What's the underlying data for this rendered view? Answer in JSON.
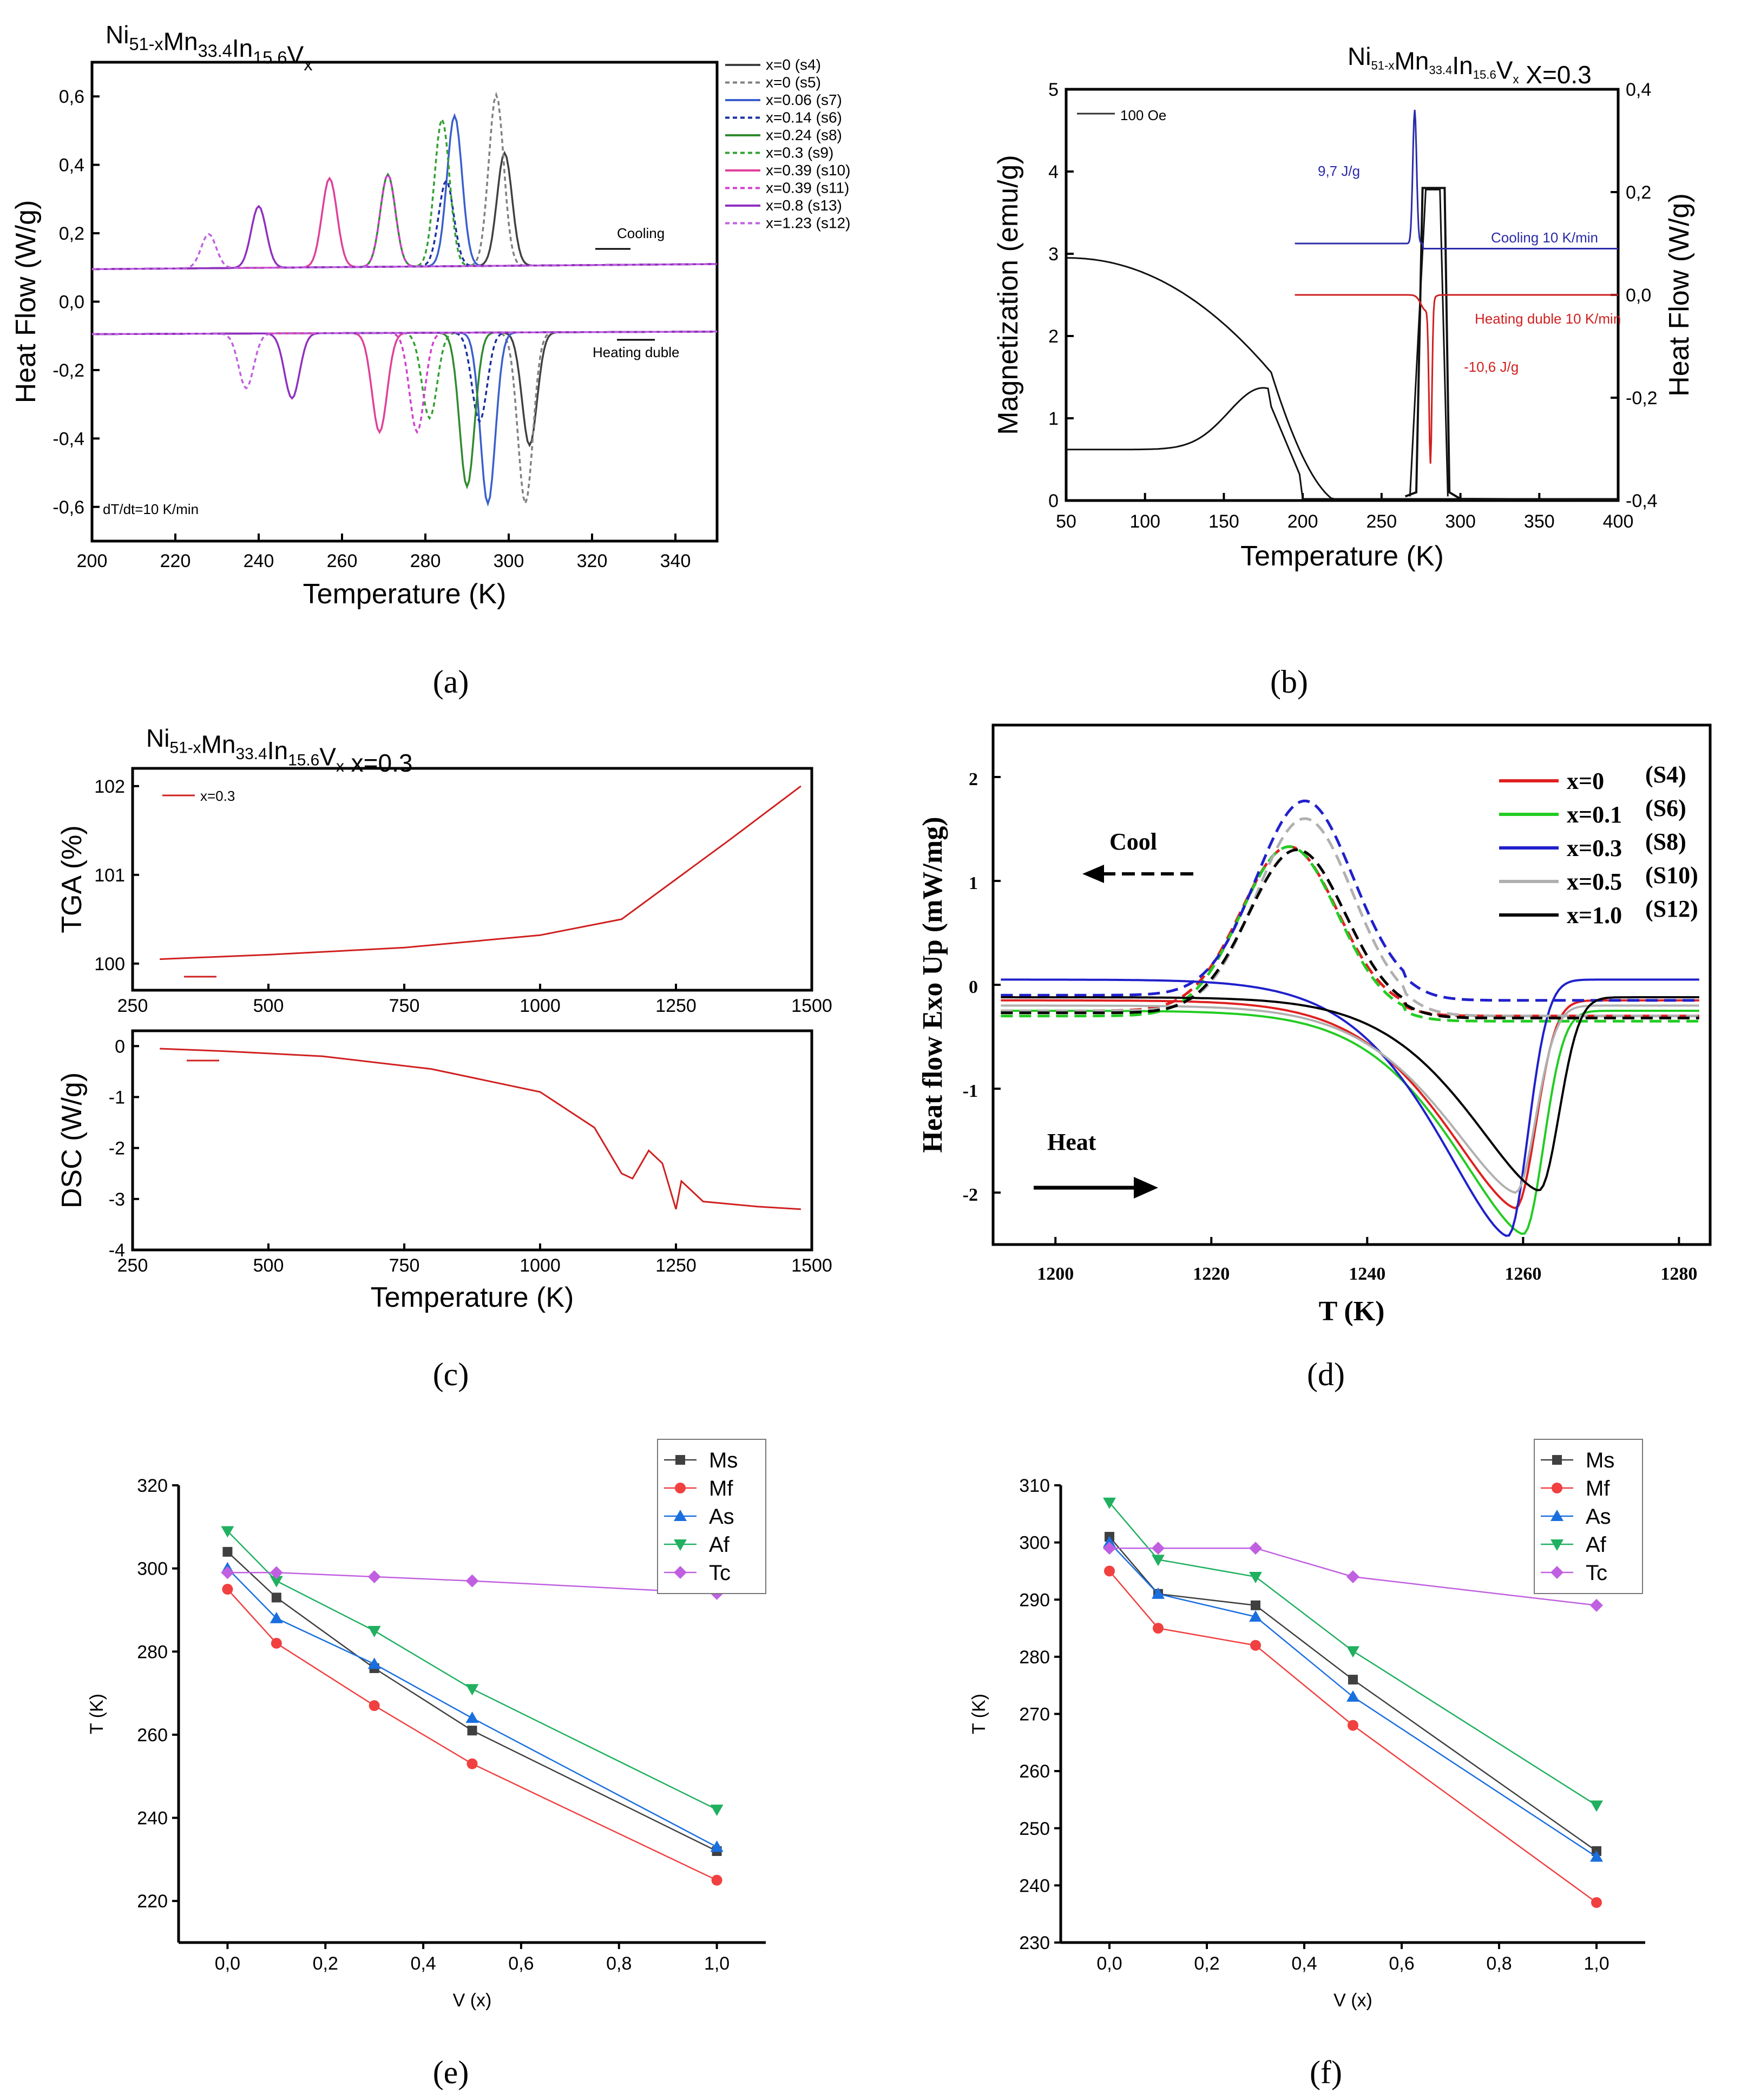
{
  "figure": {
    "panel_labels": [
      "(a)",
      "(b)",
      "(c)",
      "(d)",
      "(e)",
      "(f)"
    ]
  },
  "chart_data": [
    {
      "id": "a",
      "type": "line",
      "title": "Ni51-xMn33.4In15.6Vx",
      "xlabel": "Temperature (K)",
      "ylabel": "Heat Flow (W/g)",
      "xlim": [
        200,
        350
      ],
      "ylim": [
        -0.7,
        0.7
      ],
      "xticks": [
        "200",
        "220",
        "240",
        "260",
        "280",
        "300",
        "320",
        "340"
      ],
      "yticks": [
        "-0,6",
        "-0,4",
        "-0,2",
        "0,0",
        "0,2",
        "0,4",
        "0,6"
      ],
      "annotations": [
        "Cooling",
        "Heating duble",
        "dT/dt=10 K/min"
      ],
      "legend": [
        "x=0       (s4)",
        "x=0       (s5)",
        "x=0.06  (s7)",
        "x=0.14  (s6)",
        "x=0.24  (s8)",
        "x=0.3    (s9)",
        "x=0.39   (s10)",
        "x=0.39  (s11)",
        "x=0.8    (s13)",
        "x=1.23  (s12)"
      ],
      "series": [
        {
          "name": "x=0 (s4)",
          "color": "#404040",
          "cool_peak_T": 299,
          "cool_peak": 0.43,
          "heat_peak_T": 305,
          "heat_peak": -0.43
        },
        {
          "name": "x=0 (s5)",
          "color": "#808080",
          "cool_peak_T": 297,
          "cool_peak": 0.6,
          "heat_peak_T": 304,
          "heat_peak": -0.6
        },
        {
          "name": "x=0.06 (s7)",
          "color": "#3a5fcd",
          "cool_peak_T": 287,
          "cool_peak": 0.54,
          "heat_peak_T": 295,
          "heat_peak": -0.6
        },
        {
          "name": "x=0.14 (s6)",
          "color": "#1a2fa0",
          "cool_peak_T": 285,
          "cool_peak": 0.35,
          "heat_peak_T": 293,
          "heat_peak": -0.36
        },
        {
          "name": "x=0.24 (s8)",
          "color": "#2e8b2e",
          "cool_peak_T": 271,
          "cool_peak": 0.37,
          "heat_peak_T": 290,
          "heat_peak": -0.55
        },
        {
          "name": "x=0.3 (s9)",
          "color": "#33a033",
          "cool_peak_T": 284,
          "cool_peak": 0.53,
          "heat_peak_T": 281,
          "heat_peak": -0.35
        },
        {
          "name": "x=0.39 (s10)",
          "color": "#e0409a",
          "cool_peak_T": 257,
          "cool_peak": 0.36,
          "heat_peak_T": 269,
          "heat_peak": -0.39
        },
        {
          "name": "x=0.39 (s11)",
          "color": "#d040d0",
          "cool_peak_T": 271,
          "cool_peak": 0.37,
          "heat_peak_T": 278,
          "heat_peak": -0.39
        },
        {
          "name": "x=0.8 (s13)",
          "color": "#9030c0",
          "cool_peak_T": 240,
          "cool_peak": 0.28,
          "heat_peak_T": 248,
          "heat_peak": -0.29
        },
        {
          "name": "x=1.23 (s12)",
          "color": "#c060e0",
          "cool_peak_T": 228,
          "cool_peak": 0.2,
          "heat_peak_T": 237,
          "heat_peak": -0.26
        }
      ]
    },
    {
      "id": "b",
      "type": "line",
      "title": "Ni51-xMn33.4In15.6Vx  X=0.3",
      "xlabel": "Temperature (K)",
      "ylabel": "Magnetization (emu/g)",
      "ylabel_right": "Heat Flow (W/g)",
      "xlim": [
        50,
        400
      ],
      "ylim": [
        0,
        5
      ],
      "ylim_right": [
        -0.4,
        0.4
      ],
      "xticks": [
        "50",
        "100",
        "150",
        "200",
        "250",
        "300",
        "350",
        "400"
      ],
      "yticks": [
        "0",
        "1",
        "2",
        "3",
        "4",
        "5"
      ],
      "yticks_right": [
        "-0,4",
        "-0,2",
        "0,0",
        "0,2",
        "0,4"
      ],
      "legend": [
        "100 Oe"
      ],
      "annotations": [
        "9,7 J/g",
        "Cooling 10 K/min",
        "Heating duble 10 K/min",
        "-10,6 J/g"
      ]
    },
    {
      "id": "c",
      "type": "line",
      "title": "Ni51-xMn33.4In15.6Vx   x=0.3",
      "xlabel": "Temperature (K)",
      "top": {
        "ylabel": "TGA (%)",
        "ylim": [
          99.7,
          102.2
        ],
        "yticks": [
          "100",
          "101",
          "102"
        ],
        "legend": "x=0.3",
        "x": [
          300,
          500,
          750,
          1000,
          1150,
          1250,
          1350,
          1480
        ],
        "y": [
          100.05,
          100.1,
          100.18,
          100.32,
          100.5,
          100.95,
          101.4,
          102.0
        ]
      },
      "bottom": {
        "ylabel": "DSC (W/g)",
        "ylim": [
          -4,
          0.3
        ],
        "yticks": [
          "0",
          "-1",
          "-2",
          "-3",
          "-4"
        ],
        "x": [
          300,
          420,
          600,
          800,
          1000,
          1100,
          1150,
          1170,
          1200,
          1225,
          1250,
          1260,
          1300,
          1400,
          1480
        ],
        "y": [
          -0.05,
          -0.1,
          -0.2,
          -0.45,
          -0.9,
          -1.6,
          -2.5,
          -2.6,
          -2.05,
          -2.3,
          -3.2,
          -2.65,
          -3.05,
          -3.15,
          -3.2
        ]
      },
      "xlim": [
        250,
        1500
      ],
      "xticks": [
        "250",
        "500",
        "750",
        "1000",
        "1250",
        "1500"
      ]
    },
    {
      "id": "d",
      "type": "line",
      "xlabel": "T (K)",
      "ylabel": "Heat flow Exo Up (mW/mg)",
      "xlim": [
        1192,
        1284
      ],
      "ylim": [
        -2.5,
        2.5
      ],
      "xticks": [
        "1200",
        "1220",
        "1240",
        "1260",
        "1280"
      ],
      "yticks": [
        "2",
        "1",
        "0",
        "-1",
        "-2"
      ],
      "annotations": [
        "Cool",
        "Heat"
      ],
      "legend": [
        {
          "name": "x=0",
          "sample": "(S4)",
          "color": "#e02020",
          "cool_peak": 1.33,
          "cool_T": 1230,
          "heat_min": -2.15,
          "heat_T": 1259
        },
        {
          "name": "x=0.1",
          "sample": "(S6)",
          "color": "#22cc22",
          "cool_peak": 1.33,
          "cool_T": 1230,
          "heat_min": -2.4,
          "heat_T": 1260
        },
        {
          "name": "x=0.3",
          "sample": "(S8)",
          "color": "#2020cc",
          "cool_peak": 1.77,
          "cool_T": 1232,
          "heat_min": -2.42,
          "heat_T": 1258
        },
        {
          "name": "x=0.5",
          "sample": "(S10)",
          "color": "#b0b0b0",
          "cool_peak": 1.6,
          "cool_T": 1232,
          "heat_min": -2.0,
          "heat_T": 1259
        },
        {
          "name": "x=1.0",
          "sample": "(S12)",
          "color": "#000000",
          "cool_peak": 1.3,
          "cool_T": 1231,
          "heat_min": -1.98,
          "heat_T": 1262
        }
      ]
    },
    {
      "id": "e",
      "type": "line",
      "xlabel": "V (x)",
      "ylabel": "T (K)",
      "xlim": [
        -0.1,
        1.1
      ],
      "ylim": [
        210,
        320
      ],
      "xticks": [
        "0,0",
        "0,2",
        "0,4",
        "0,6",
        "0,8",
        "1,0"
      ],
      "yticks": [
        "220",
        "240",
        "260",
        "280",
        "300",
        "320"
      ],
      "x": [
        0,
        0.1,
        0.3,
        0.5,
        1.0
      ],
      "series": [
        {
          "name": "Ms",
          "color": "#404040",
          "marker": "square",
          "values": [
            304,
            293,
            276,
            261,
            232
          ]
        },
        {
          "name": "Mf",
          "color": "#f04040",
          "marker": "circle",
          "values": [
            295,
            282,
            267,
            253,
            225
          ]
        },
        {
          "name": "As",
          "color": "#1a6fdf",
          "marker": "triangle-up",
          "values": [
            300,
            288,
            277,
            264,
            233
          ]
        },
        {
          "name": "Af",
          "color": "#20b060",
          "marker": "triangle-down",
          "values": [
            309,
            297,
            285,
            271,
            242
          ]
        },
        {
          "name": "Tc",
          "color": "#c060e0",
          "marker": "diamond",
          "values": [
            299,
            299,
            298,
            297,
            294
          ]
        }
      ]
    },
    {
      "id": "f",
      "type": "line",
      "xlabel": "V (x)",
      "ylabel": "T (K)",
      "xlim": [
        -0.1,
        1.1
      ],
      "ylim": [
        230,
        310
      ],
      "xticks": [
        "0,0",
        "0,2",
        "0,4",
        "0,6",
        "0,8",
        "1,0"
      ],
      "yticks": [
        "230",
        "240",
        "250",
        "260",
        "270",
        "280",
        "290",
        "300",
        "310"
      ],
      "x": [
        0,
        0.1,
        0.3,
        0.5,
        1.0
      ],
      "series": [
        {
          "name": "Ms",
          "color": "#404040",
          "marker": "square",
          "values": [
            301,
            291,
            289,
            276,
            246
          ]
        },
        {
          "name": "Mf",
          "color": "#f04040",
          "marker": "circle",
          "values": [
            295,
            285,
            282,
            268,
            237
          ]
        },
        {
          "name": "As",
          "color": "#1a6fdf",
          "marker": "triangle-up",
          "values": [
            300,
            291,
            287,
            273,
            245
          ]
        },
        {
          "name": "Af",
          "color": "#20b060",
          "marker": "triangle-down",
          "values": [
            307,
            297,
            294,
            281,
            254
          ]
        },
        {
          "name": "Tc",
          "color": "#c060e0",
          "marker": "diamond",
          "values": [
            299,
            299,
            299,
            294,
            289
          ]
        }
      ]
    }
  ]
}
